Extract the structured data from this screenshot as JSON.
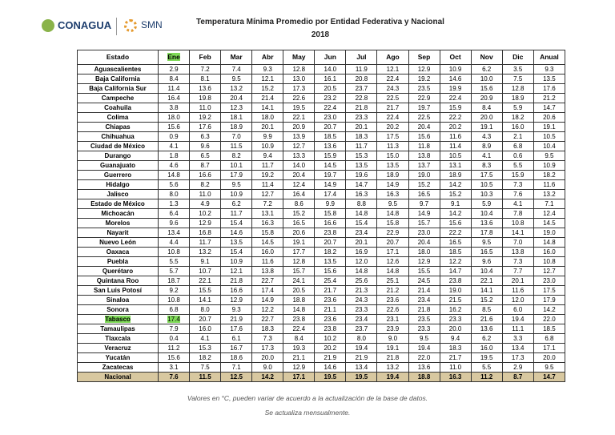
{
  "header": {
    "logo_left": "CONAGUA",
    "logo_right": "SMN",
    "title": "Temperatura Mínima Promedio por Entidad Federativa y Nacional",
    "year": "2018"
  },
  "table": {
    "columns": [
      "Estado",
      "Ene",
      "Feb",
      "Mar",
      "Abr",
      "May",
      "Jun",
      "Jul",
      "Ago",
      "Sep",
      "Oct",
      "Nov",
      "Dic",
      "Anual"
    ],
    "rows": [
      [
        "Aguascalientes",
        "2.9",
        "7.2",
        "7.4",
        "9.3",
        "12.8",
        "14.0",
        "11.9",
        "12.1",
        "12.9",
        "10.9",
        "6.2",
        "3.5",
        "9.3"
      ],
      [
        "Baja California",
        "8.4",
        "8.1",
        "9.5",
        "12.1",
        "13.0",
        "16.1",
        "20.8",
        "22.4",
        "19.2",
        "14.6",
        "10.0",
        "7.5",
        "13.5"
      ],
      [
        "Baja California Sur",
        "11.4",
        "13.6",
        "13.2",
        "15.2",
        "17.3",
        "20.5",
        "23.7",
        "24.3",
        "23.5",
        "19.9",
        "15.6",
        "12.8",
        "17.6"
      ],
      [
        "Campeche",
        "16.4",
        "19.8",
        "20.4",
        "21.4",
        "22.6",
        "23.2",
        "22.8",
        "22.5",
        "22.9",
        "22.4",
        "20.9",
        "18.9",
        "21.2"
      ],
      [
        "Coahuila",
        "3.8",
        "11.0",
        "12.3",
        "14.1",
        "19.5",
        "22.4",
        "21.8",
        "21.7",
        "19.7",
        "15.9",
        "8.4",
        "5.9",
        "14.7"
      ],
      [
        "Colima",
        "18.0",
        "19.2",
        "18.1",
        "18.0",
        "22.1",
        "23.0",
        "23.3",
        "22.4",
        "22.5",
        "22.2",
        "20.0",
        "18.2",
        "20.6"
      ],
      [
        "Chiapas",
        "15.6",
        "17.6",
        "18.9",
        "20.1",
        "20.9",
        "20.7",
        "20.1",
        "20.2",
        "20.4",
        "20.2",
        "19.1",
        "16.0",
        "19.1"
      ],
      [
        "Chihuahua",
        "0.9",
        "6.3",
        "7.0",
        "9.9",
        "13.9",
        "18.5",
        "18.3",
        "17.5",
        "15.6",
        "11.6",
        "4.3",
        "2.1",
        "10.5"
      ],
      [
        "Ciudad de México",
        "4.1",
        "9.6",
        "11.5",
        "10.9",
        "12.7",
        "13.6",
        "11.7",
        "11.3",
        "11.8",
        "11.4",
        "8.9",
        "6.8",
        "10.4"
      ],
      [
        "Durango",
        "1.8",
        "6.5",
        "8.2",
        "9.4",
        "13.3",
        "15.9",
        "15.3",
        "15.0",
        "13.8",
        "10.5",
        "4.1",
        "0.6",
        "9.5"
      ],
      [
        "Guanajuato",
        "4.6",
        "8.7",
        "10.1",
        "11.7",
        "14.0",
        "14.5",
        "13.5",
        "13.5",
        "13.7",
        "13.1",
        "8.3",
        "5.5",
        "10.9"
      ],
      [
        "Guerrero",
        "14.8",
        "16.6",
        "17.9",
        "19.2",
        "20.4",
        "19.7",
        "19.6",
        "18.9",
        "19.0",
        "18.9",
        "17.5",
        "15.9",
        "18.2"
      ],
      [
        "Hidalgo",
        "5.6",
        "8.2",
        "9.5",
        "11.4",
        "12.4",
        "14.9",
        "14.7",
        "14.9",
        "15.2",
        "14.2",
        "10.5",
        "7.3",
        "11.6"
      ],
      [
        "Jalisco",
        "8.0",
        "11.0",
        "10.9",
        "12.7",
        "16.4",
        "17.4",
        "16.3",
        "16.3",
        "16.5",
        "15.2",
        "10.3",
        "7.6",
        "13.2"
      ],
      [
        "Estado de México",
        "1.3",
        "4.9",
        "6.2",
        "7.2",
        "8.6",
        "9.9",
        "8.8",
        "9.5",
        "9.7",
        "9.1",
        "5.9",
        "4.1",
        "7.1"
      ],
      [
        "Michoacán",
        "6.4",
        "10.2",
        "11.7",
        "13.1",
        "15.2",
        "15.8",
        "14.8",
        "14.8",
        "14.9",
        "14.2",
        "10.4",
        "7.8",
        "12.4"
      ],
      [
        "Morelos",
        "9.6",
        "12.9",
        "15.4",
        "16.3",
        "16.5",
        "16.6",
        "15.4",
        "15.8",
        "15.7",
        "15.6",
        "13.6",
        "10.8",
        "14.5"
      ],
      [
        "Nayarit",
        "13.4",
        "16.8",
        "14.6",
        "15.8",
        "20.6",
        "23.8",
        "23.4",
        "22.9",
        "23.0",
        "22.2",
        "17.8",
        "14.1",
        "19.0"
      ],
      [
        "Nuevo León",
        "4.4",
        "11.7",
        "13.5",
        "14.5",
        "19.1",
        "20.7",
        "20.1",
        "20.7",
        "20.4",
        "16.5",
        "9.5",
        "7.0",
        "14.8"
      ],
      [
        "Oaxaca",
        "10.8",
        "13.2",
        "15.4",
        "16.0",
        "17.7",
        "18.2",
        "16.9",
        "17.1",
        "18.0",
        "18.5",
        "16.5",
        "13.8",
        "16.0"
      ],
      [
        "Puebla",
        "5.5",
        "9.1",
        "10.9",
        "11.6",
        "12.8",
        "13.5",
        "12.0",
        "12.6",
        "12.9",
        "12.2",
        "9.6",
        "7.3",
        "10.8"
      ],
      [
        "Querétaro",
        "5.7",
        "10.7",
        "12.1",
        "13.8",
        "15.7",
        "15.6",
        "14.8",
        "14.8",
        "15.5",
        "14.7",
        "10.4",
        "7.7",
        "12.7"
      ],
      [
        "Quintana Roo",
        "18.7",
        "22.1",
        "21.8",
        "22.7",
        "24.1",
        "25.4",
        "25.6",
        "25.1",
        "24.5",
        "23.8",
        "22.1",
        "20.1",
        "23.0"
      ],
      [
        "San Luis Potosí",
        "9.2",
        "15.5",
        "16.6",
        "17.4",
        "20.5",
        "21.7",
        "21.3",
        "21.2",
        "21.4",
        "19.0",
        "14.1",
        "11.6",
        "17.5"
      ],
      [
        "Sinaloa",
        "10.8",
        "14.1",
        "12.9",
        "14.9",
        "18.8",
        "23.6",
        "24.3",
        "23.6",
        "23.4",
        "21.5",
        "15.2",
        "12.0",
        "17.9"
      ],
      [
        "Sonora",
        "6.8",
        "8.0",
        "9.3",
        "12.2",
        "14.8",
        "21.1",
        "23.3",
        "22.6",
        "21.8",
        "16.2",
        "8.5",
        "6.0",
        "14.2"
      ],
      [
        "Tabasco",
        "17.4",
        "20.7",
        "21.9",
        "22.7",
        "23.8",
        "23.6",
        "23.4",
        "23.1",
        "23.5",
        "23.3",
        "21.6",
        "19.4",
        "22.0"
      ],
      [
        "Tamaulipas",
        "7.9",
        "16.0",
        "17.6",
        "18.3",
        "22.4",
        "23.8",
        "23.7",
        "23.9",
        "23.3",
        "20.0",
        "13.6",
        "11.1",
        "18.5"
      ],
      [
        "Tlaxcala",
        "0.4",
        "4.1",
        "6.1",
        "7.3",
        "8.4",
        "10.2",
        "8.0",
        "9.0",
        "9.5",
        "9.4",
        "6.2",
        "3.3",
        "6.8"
      ],
      [
        "Veracruz",
        "11.2",
        "15.3",
        "16.7",
        "17.3",
        "19.3",
        "20.2",
        "19.4",
        "19.1",
        "19.4",
        "18.3",
        "16.0",
        "13.4",
        "17.1"
      ],
      [
        "Yucatán",
        "15.6",
        "18.2",
        "18.6",
        "20.0",
        "21.1",
        "21.9",
        "21.9",
        "21.8",
        "22.0",
        "21.7",
        "19.5",
        "17.3",
        "20.0"
      ],
      [
        "Zacatecas",
        "3.1",
        "7.5",
        "7.1",
        "9.0",
        "12.9",
        "14.6",
        "13.4",
        "13.2",
        "13.6",
        "11.0",
        "5.5",
        "2.9",
        "9.5"
      ],
      [
        "Nacional",
        "7.6",
        "11.5",
        "12.5",
        "14.2",
        "17.1",
        "19.5",
        "19.5",
        "19.4",
        "18.8",
        "16.3",
        "11.2",
        "8.7",
        "14.7"
      ]
    ]
  },
  "footer": {
    "line1": "Valores en °C, pueden variar de acuerdo a la actualización de la base de datos.",
    "line2": "Se actualiza mensualmente."
  }
}
